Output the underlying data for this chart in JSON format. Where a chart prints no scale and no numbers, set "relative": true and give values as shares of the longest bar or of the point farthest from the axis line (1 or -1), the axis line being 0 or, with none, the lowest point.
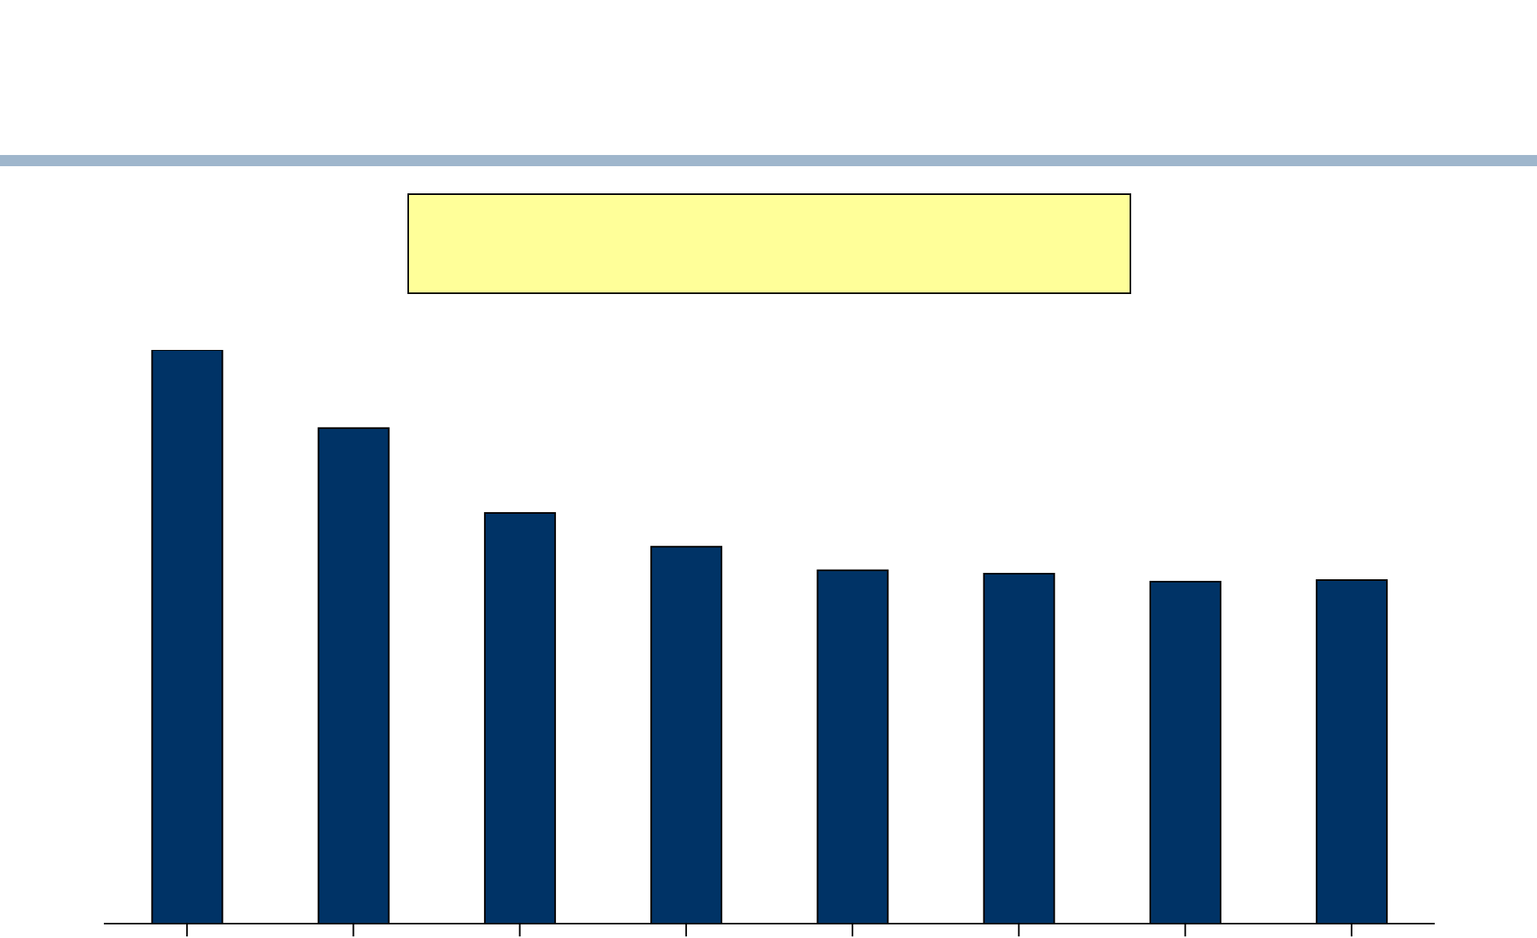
{
  "chart_data": {
    "type": "bar",
    "categories": [
      null,
      null,
      null,
      null,
      null,
      null,
      null,
      null
    ],
    "values": [
      1,
      0.864,
      0.716,
      0.657,
      0.616,
      0.61,
      0.596,
      0.599
    ],
    "color": "#003366",
    "relative": true,
    "grid": false,
    "legend": false
  }
}
